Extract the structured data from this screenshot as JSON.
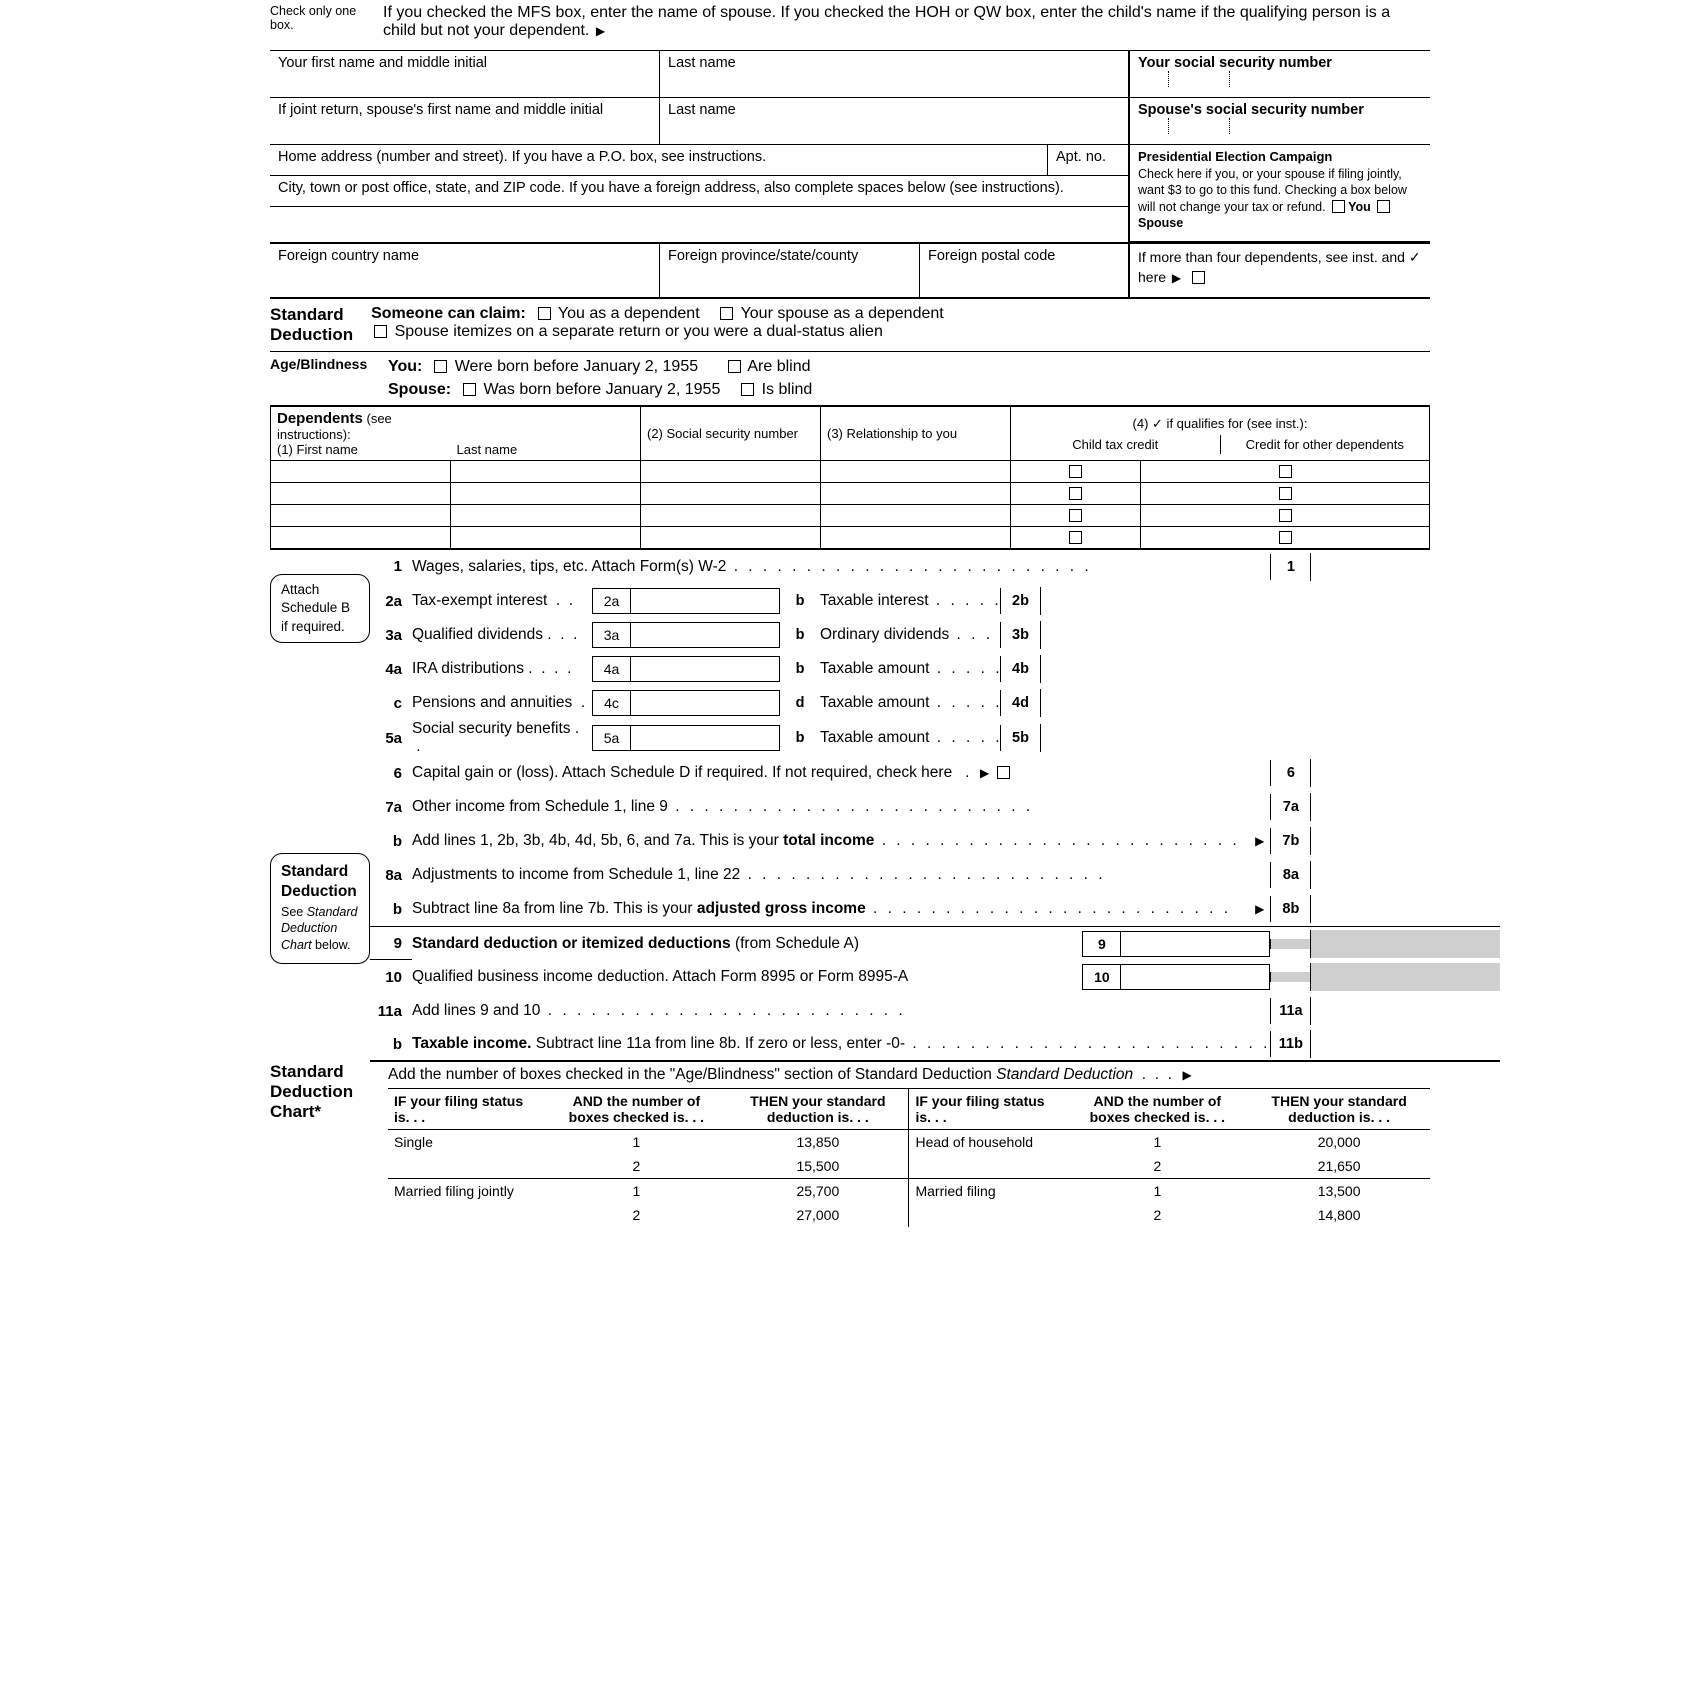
{
  "filing_status": {
    "check_only": "Check only one box.",
    "instruction": "If you checked the MFS box, enter the name of spouse. If you checked the HOH or QW box, enter the child's name if the qualifying person is a child but not your dependent."
  },
  "name": {
    "first_label": "Your first name and middle initial",
    "last_label": "Last name",
    "ssn_label": "Your social security number",
    "spouse_first_label": "If joint return, spouse's first name and middle initial",
    "spouse_last_label": "Last name",
    "spouse_ssn_label": "Spouse's social security number"
  },
  "address": {
    "home_label": "Home address (number and street). If you have a P.O. box, see instructions.",
    "apt_label": "Apt. no.",
    "city_label": "City, town or post office, state, and ZIP code. If you have a foreign address, also complete spaces below (see instructions).",
    "foreign_country_label": "Foreign country name",
    "foreign_province_label": "Foreign province/state/county",
    "foreign_postal_label": "Foreign postal code"
  },
  "pec": {
    "title": "Presidential Election Campaign",
    "text1": "Check here if you, or your spouse if filing jointly, want $3 to go to this fund. Checking a box below will not change your tax or refund.",
    "you": "You",
    "spouse": "Spouse"
  },
  "more_deps": {
    "text": "If more than four dependents, see inst. and  ✓ here"
  },
  "std_ded": {
    "heading": "Standard Deduction",
    "someone": "Someone can claim:",
    "you_dep": "You as a dependent",
    "spouse_dep": "Your spouse as a dependent",
    "spouse_itemizes": "Spouse itemizes on a separate return or you were a dual-status alien"
  },
  "age": {
    "heading": "Age/Blindness",
    "you": "You:",
    "born": "Were born before January 2, 1955",
    "blind": "Are blind",
    "spouse": "Spouse:",
    "was_born": "Was born before January 2, 1955",
    "is_blind": "Is blind"
  },
  "dependents": {
    "heading": "Dependents",
    "see": "(see instructions):",
    "col1": "(1)  First name",
    "col1b": "Last name",
    "col2": "(2)  Social security number",
    "col3": "(3)  Relationship to you",
    "col4": "(4)  ✓ if qualifies for (see inst.):",
    "ctc": "Child tax credit",
    "codc": "Credit for other dependents"
  },
  "attach_b": "Attach Schedule B if required.",
  "sd_side": {
    "title": "Standard Deduction",
    "see": "See Standard Deduction Chart below."
  },
  "lines": {
    "l1": "Wages, salaries, tips, etc. Attach Form(s) W-2",
    "l2a": "Tax-exempt interest",
    "l2b": "Taxable interest",
    "l3a": "Qualified dividends",
    "l3b": "Ordinary dividends",
    "l4a": "IRA distributions",
    "l4b": "Taxable amount",
    "l4c": "Pensions and annuities",
    "l4d": "Taxable amount",
    "l5a": "Social security benefits",
    "l5b": "Taxable amount",
    "l6": "Capital gain or (loss). Attach Schedule D if required. If not required, check here",
    "l7a": "Other income from Schedule 1, line 9",
    "l7b_pre": "Add lines 1, 2b, 3b, 4b, 4d, 5b, 6, and 7a. This is your ",
    "l7b_bold": "total income",
    "l8a": "Adjustments to income from Schedule 1, line 22",
    "l8b_pre": "Subtract line 8a from line 7b. This is your ",
    "l8b_bold": "adjusted gross income",
    "l9": "Standard deduction or itemized deductions",
    "l9_tail": " (from Schedule A)",
    "l10": "Qualified business income deduction. Attach Form 8995 or Form 8995-A",
    "l11a": "Add lines 9 and 10",
    "l11b_bold": "Taxable income.",
    "l11b_tail": " Subtract line 11a from line 8b. If zero or less, enter -0-"
  },
  "chart": {
    "heading": "Standard Deduction Chart*",
    "intro": "Add the number of boxes checked in the \"Age/Blindness\" section of Standard Deduction",
    "h1": "IF your filing status is. . .",
    "h2": "AND the number of boxes checked is. . .",
    "h3": "THEN your standard deduction is. . .",
    "rows_left": [
      {
        "status": "Single",
        "n": [
          "1",
          "2"
        ],
        "d": [
          "13,850",
          "15,500"
        ]
      },
      {
        "status": "Married filing jointly",
        "n": [
          "1",
          "2"
        ],
        "d": [
          "25,700",
          "27,000"
        ]
      }
    ],
    "rows_right": [
      {
        "status": "Head of household",
        "n": [
          "1",
          "2"
        ],
        "d": [
          "20,000",
          "21,650"
        ]
      },
      {
        "status": "Married filing",
        "n": [
          "1",
          "2"
        ],
        "d": [
          "13,500",
          "14,800"
        ]
      }
    ]
  }
}
